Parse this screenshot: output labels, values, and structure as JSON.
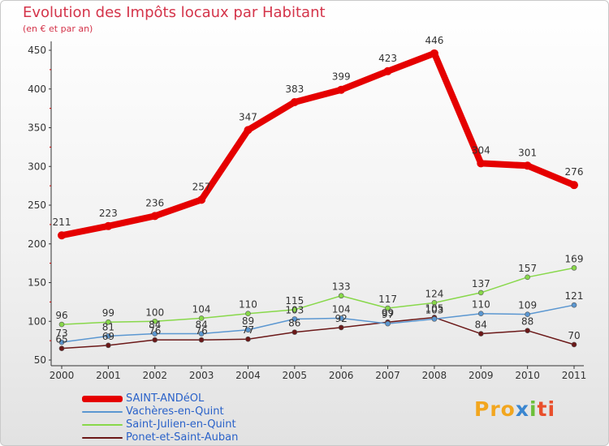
{
  "chart_data": {
    "type": "line",
    "title": "Evolution des Impôts locaux par Habitant",
    "subtitle": "(en € et par an)",
    "xlabel": "",
    "ylabel": "",
    "x": [
      "2000",
      "2001",
      "2002",
      "2003",
      "2004",
      "2005",
      "2006",
      "2007",
      "2008",
      "2009",
      "2010",
      "2011"
    ],
    "ylim": [
      50,
      450
    ],
    "yticks": [
      "50",
      "100",
      "150",
      "200",
      "250",
      "300",
      "350",
      "400",
      "450"
    ],
    "grid": false,
    "legend_position": "bottom-left",
    "series": [
      {
        "name": "SAINT-ANDéOL",
        "color": "#e50000",
        "values": [
          211,
          223,
          236,
          257,
          347,
          383,
          399,
          423,
          446,
          304,
          301,
          276
        ],
        "labels": [
          "211",
          "223",
          "236",
          "257",
          "347",
          "383",
          "399",
          "423",
          "446",
          "304",
          "301",
          "276"
        ]
      },
      {
        "name": "Vachères-en-Quint",
        "color": "#5b97d1",
        "values": [
          73,
          81,
          84,
          84,
          89,
          103,
          104,
          97,
          103,
          110,
          109,
          121
        ],
        "labels": [
          "73",
          "81",
          "84",
          "84",
          "89",
          "103",
          "104",
          "97",
          "103",
          "110",
          "109",
          "121"
        ]
      },
      {
        "name": "Saint-Julien-en-Quint",
        "color": "#88d84a",
        "values": [
          96,
          99,
          100,
          104,
          110,
          115,
          133,
          117,
          124,
          137,
          157,
          169
        ],
        "labels": [
          "96",
          "99",
          "100",
          "104",
          "110",
          "115",
          "133",
          "117",
          "124",
          "137",
          "157",
          "169"
        ]
      },
      {
        "name": "Ponet-et-Saint-Auban",
        "color": "#6b1818",
        "values": [
          65,
          69,
          76,
          76,
          77,
          86,
          92,
          99,
          105,
          84,
          88,
          70
        ],
        "labels": [
          "65",
          "69",
          "76",
          "76",
          "77",
          "86",
          "92",
          "99",
          "105",
          "84",
          "88",
          "70"
        ]
      }
    ]
  },
  "logo": {
    "p1": "Pro",
    "p2": "x",
    "p3": "i",
    "p4": "ti"
  }
}
